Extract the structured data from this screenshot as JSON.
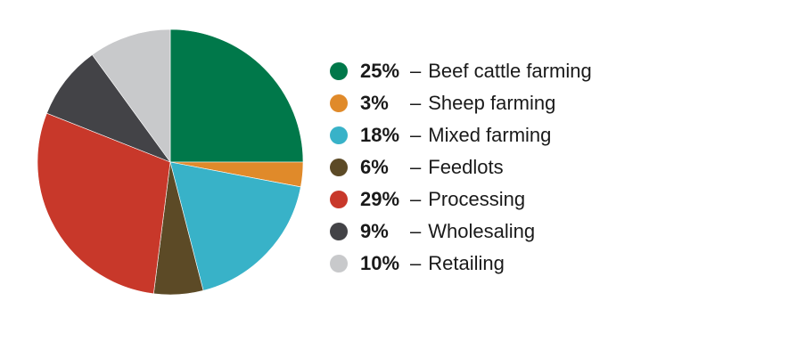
{
  "chart_data": {
    "type": "pie",
    "title": "",
    "categories": [
      "Beef cattle farming",
      "Sheep farming",
      "Mixed farming",
      "Feedlots",
      "Processing",
      "Wholesaling",
      "Retailing"
    ],
    "values": [
      25,
      3,
      18,
      6,
      29,
      9,
      10
    ],
    "labels": [
      "25%",
      "3%",
      "18%",
      "6%",
      "29%",
      "9%",
      "10%"
    ],
    "colors": [
      "#00784a",
      "#e08a2a",
      "#38b2c8",
      "#5c4a26",
      "#c8382a",
      "#434347",
      "#c8c9cb"
    ],
    "dash": "–",
    "legend_position": "right",
    "start_angle": "12 o'clock",
    "direction": "clockwise"
  }
}
